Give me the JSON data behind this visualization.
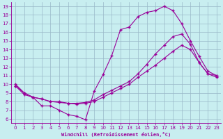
{
  "xlabel": "Windchill (Refroidissement éolien,°C)",
  "bg_color": "#c8eef0",
  "grid_color": "#9ab8c8",
  "line_color": "#990099",
  "xlim": [
    -0.5,
    23.5
  ],
  "ylim": [
    5.5,
    19.5
  ],
  "xticks": [
    0,
    1,
    2,
    3,
    4,
    5,
    6,
    7,
    8,
    9,
    10,
    11,
    12,
    13,
    14,
    15,
    16,
    17,
    18,
    19,
    20,
    21,
    22,
    23
  ],
  "yticks": [
    6,
    7,
    8,
    9,
    10,
    11,
    12,
    13,
    14,
    15,
    16,
    17,
    18,
    19
  ],
  "line1_x": [
    0,
    1,
    2,
    3,
    4,
    5,
    6,
    7,
    8,
    9,
    10,
    11,
    12,
    13,
    14,
    15,
    16,
    17,
    18,
    19,
    20,
    21,
    22,
    23
  ],
  "line1_y": [
    10.0,
    9.0,
    8.5,
    7.5,
    7.5,
    7.0,
    6.5,
    6.3,
    5.9,
    9.2,
    11.1,
    13.3,
    16.3,
    16.6,
    17.8,
    18.3,
    18.5,
    19.0,
    18.5,
    17.0,
    15.0,
    13.2,
    11.5,
    11.0
  ],
  "line2_x": [
    0,
    1,
    2,
    3,
    4,
    5,
    6,
    7,
    8,
    9,
    10,
    11,
    12,
    13,
    14,
    15,
    16,
    17,
    18,
    19,
    20,
    21,
    22,
    23
  ],
  "line2_y": [
    9.8,
    9.0,
    8.5,
    8.3,
    8.0,
    8.0,
    7.8,
    7.8,
    7.9,
    8.2,
    8.8,
    9.3,
    9.8,
    10.3,
    11.2,
    12.3,
    13.5,
    14.5,
    15.5,
    15.8,
    14.6,
    12.5,
    11.2,
    10.8
  ],
  "line3_x": [
    0,
    1,
    2,
    3,
    4,
    5,
    6,
    7,
    8,
    9,
    10,
    11,
    12,
    13,
    14,
    15,
    16,
    17,
    18,
    19,
    20,
    21,
    22,
    23
  ],
  "line3_y": [
    9.8,
    8.8,
    8.5,
    8.3,
    8.0,
    7.9,
    7.8,
    7.7,
    7.8,
    8.0,
    8.5,
    9.0,
    9.5,
    10.0,
    10.8,
    11.5,
    12.2,
    13.0,
    13.8,
    14.5,
    14.0,
    12.5,
    11.2,
    11.0
  ]
}
